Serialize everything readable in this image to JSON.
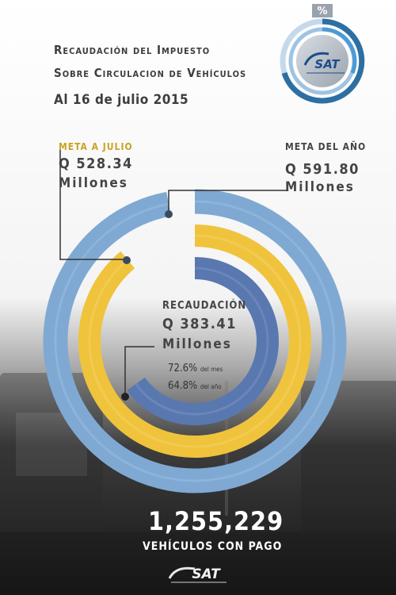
{
  "header": {
    "title_line1": "Recaudación del Impuesto",
    "title_line2": "Sobre Circulacion de Vehículos",
    "date": "Al 16 de julio 2015",
    "badge_symbol": "%",
    "logo_text": "SAT"
  },
  "meta_julio": {
    "label": "META A JULIO",
    "amount": "Q 528.34",
    "unit": "Millones"
  },
  "meta_anio": {
    "label": "META DEL AÑO",
    "amount": "Q 591.80",
    "unit": "Millones"
  },
  "recaudacion": {
    "label": "RECAUDACIÓN",
    "amount": "Q 383.41",
    "unit": "Millones",
    "pct_mes": "72.6%",
    "pct_mes_label": "del mes",
    "pct_anio": "64.8%",
    "pct_anio_label": "del año"
  },
  "footer": {
    "vehicles_count": "1,255,229",
    "vehicles_label": "VEHÍCULOS CON PAGO",
    "logo_text": "SAT"
  },
  "chart_data": {
    "type": "radial_bar",
    "series": [
      {
        "name": "META DEL AÑO",
        "value": 591.8,
        "fraction": 0.97,
        "color": "#7fa9d3"
      },
      {
        "name": "META A JULIO",
        "value": 528.34,
        "fraction": 0.89,
        "color": "#f0c33c"
      },
      {
        "name": "RECAUDACIÓN",
        "value": 383.41,
        "fraction": 0.65,
        "color": "#5a78b0"
      }
    ]
  }
}
